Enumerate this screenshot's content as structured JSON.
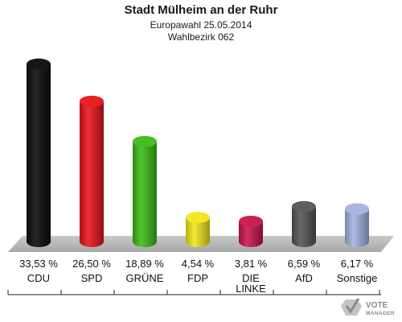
{
  "chart_data": {
    "type": "bar",
    "title": "Stadt Mülheim an der Ruhr",
    "subtitle": "Europawahl 25.05.2014",
    "subtitle2": "Wahlbezirk 062",
    "categories": [
      "CDU",
      "SPD",
      "GRÜNE",
      "FDP",
      "DIE LINKE",
      "AfD",
      "Sonstige"
    ],
    "category_lines": [
      [
        "CDU"
      ],
      [
        "SPD"
      ],
      [
        "GRÜNE"
      ],
      [
        "FDP"
      ],
      [
        "DIE",
        "LINKE"
      ],
      [
        "AfD"
      ],
      [
        "Sonstige"
      ]
    ],
    "values": [
      33.53,
      26.5,
      18.89,
      4.54,
      3.81,
      6.59,
      6.17
    ],
    "value_labels": [
      "33,53 %",
      "26,50 %",
      "18,89 %",
      "4,54 %",
      "3,81 %",
      "6,59 %",
      "6,17 %"
    ],
    "colors": [
      "#0a0a0a",
      "#e8141b",
      "#3dbb14",
      "#f2e61c",
      "#c8144a",
      "#555555",
      "#a3b3e0"
    ],
    "ylim": [
      0,
      35
    ],
    "legend": "none",
    "grid": false
  },
  "logo": {
    "line1": "VOTE",
    "line2": "MANAGER"
  }
}
